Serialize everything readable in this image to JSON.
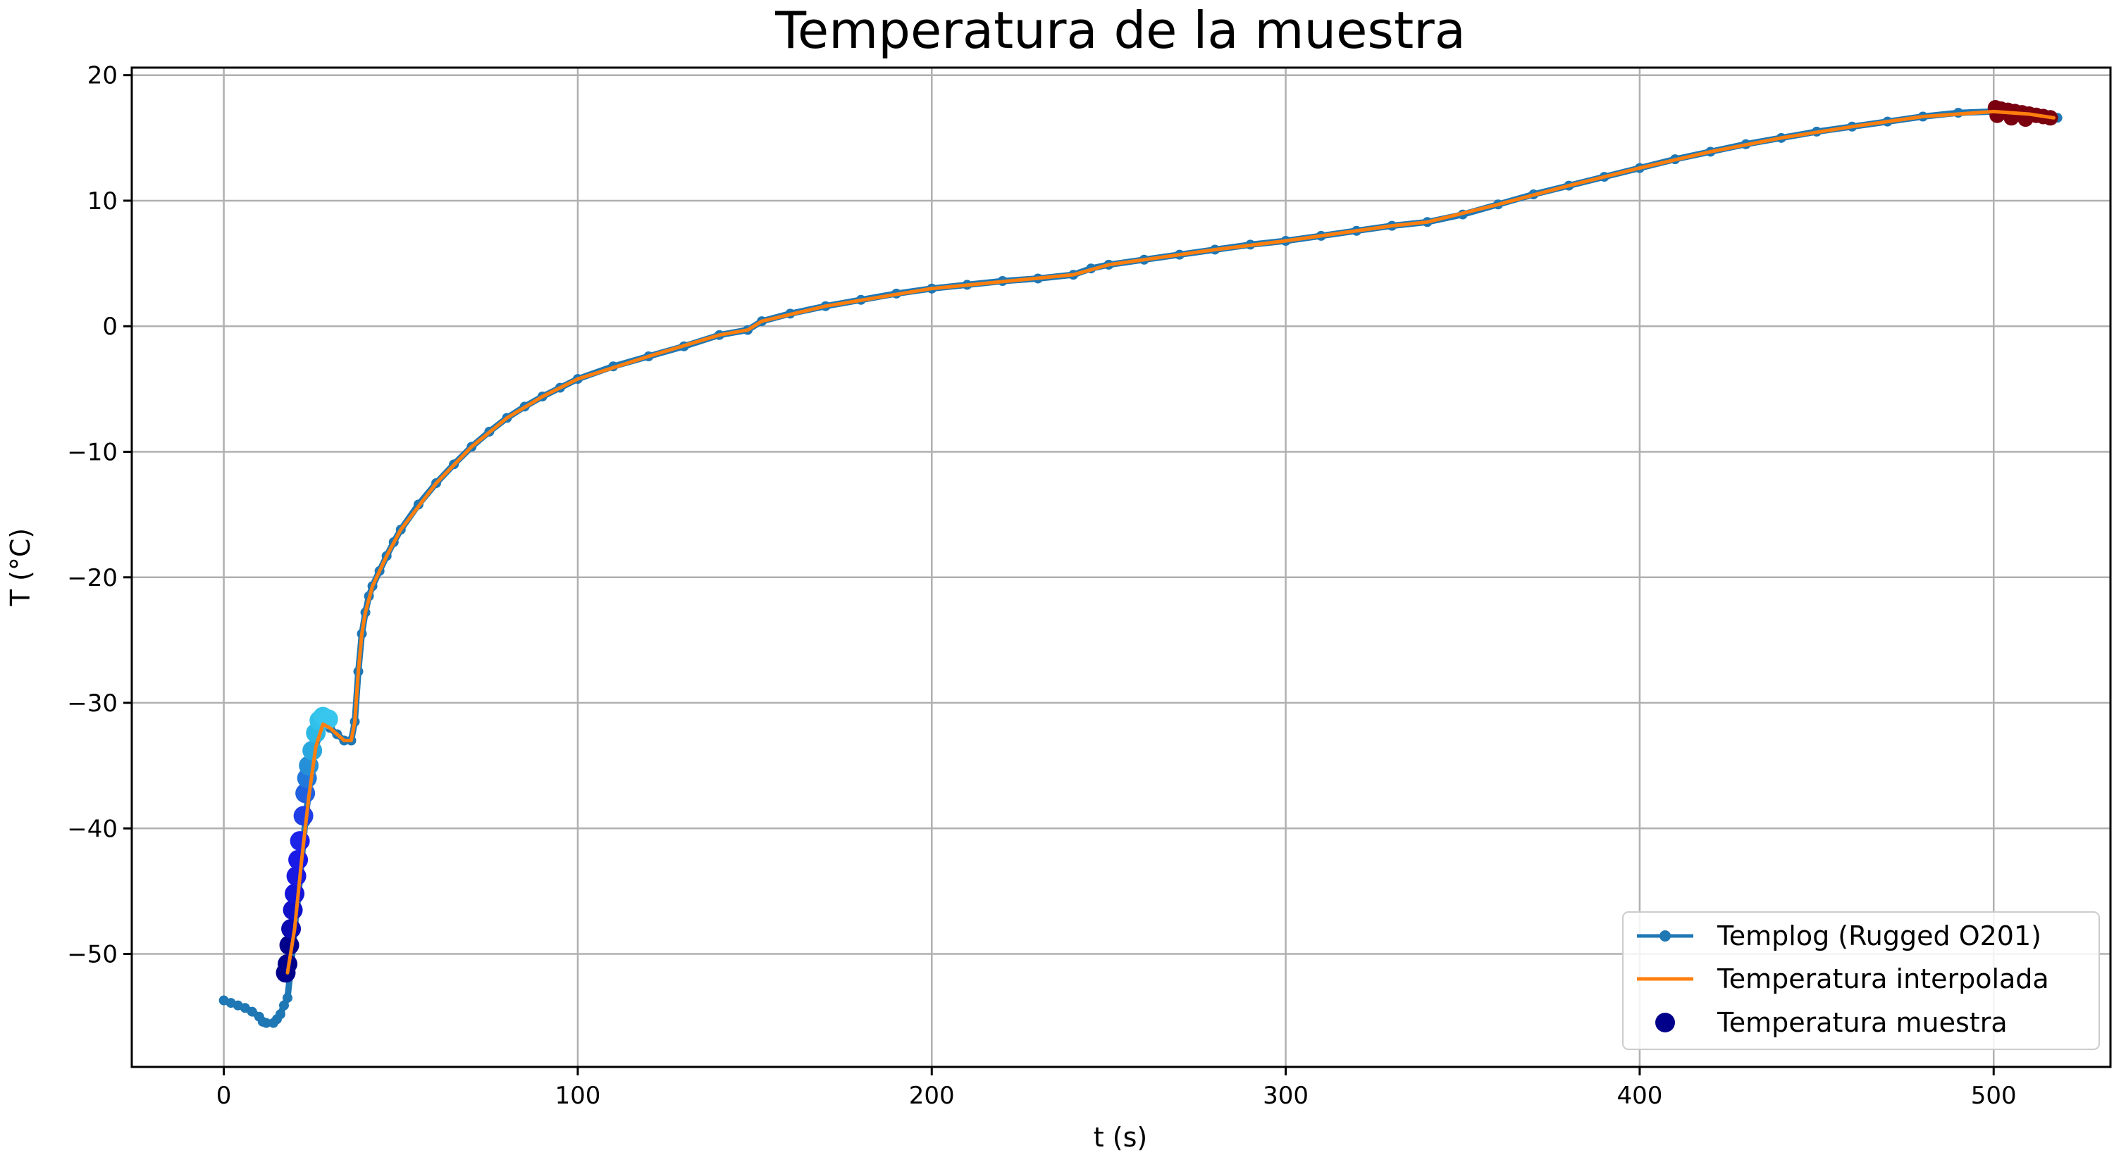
{
  "chart_data": {
    "type": "line",
    "title": "Temperatura de la muestra",
    "xlabel": "t (s)",
    "ylabel": "T (°C)",
    "xlim": [
      -26,
      533
    ],
    "ylim": [
      -59,
      20.6
    ],
    "xticks": [
      0,
      100,
      200,
      300,
      400,
      500
    ],
    "yticks": [
      20,
      10,
      0,
      -10,
      -20,
      -30,
      -40,
      -50
    ],
    "ytick_labels": [
      "20",
      "10",
      "0",
      "−10",
      "−20",
      "−30",
      "−40",
      "−50"
    ],
    "grid": true,
    "legend_position": "lower-right",
    "legend": [
      {
        "label": "Templog (Rugged O201)",
        "kind": "line-marker",
        "color": "#1f77b4"
      },
      {
        "label": "Temperatura interpolada",
        "kind": "line",
        "color": "#ff7f0e"
      },
      {
        "label": "Temperatura muestra",
        "kind": "scatter",
        "color": "#00008b"
      }
    ],
    "series": [
      {
        "name": "Templog (Rugged O201)",
        "color": "#1f77b4",
        "points": [
          [
            0,
            -53.7
          ],
          [
            2,
            -53.9
          ],
          [
            4,
            -54.1
          ],
          [
            6,
            -54.3
          ],
          [
            8,
            -54.6
          ],
          [
            10,
            -55.0
          ],
          [
            11,
            -55.4
          ],
          [
            12,
            -55.5
          ],
          [
            14,
            -55.5
          ],
          [
            15,
            -55.2
          ],
          [
            16,
            -54.8
          ],
          [
            17,
            -54.1
          ],
          [
            18,
            -53.5
          ],
          [
            19,
            -51.0
          ],
          [
            20,
            -48.0
          ],
          [
            21,
            -45.5
          ],
          [
            22,
            -42.5
          ],
          [
            23,
            -39.5
          ],
          [
            24,
            -37.0
          ],
          [
            25,
            -35.0
          ],
          [
            26,
            -33.0
          ],
          [
            27,
            -31.8
          ],
          [
            28,
            -31.5
          ],
          [
            29,
            -31.7
          ],
          [
            30,
            -32.0
          ],
          [
            32,
            -32.5
          ],
          [
            34,
            -33.0
          ],
          [
            36,
            -33.0
          ],
          [
            37,
            -31.5
          ],
          [
            38,
            -27.5
          ],
          [
            39,
            -24.5
          ],
          [
            40,
            -22.8
          ],
          [
            41,
            -21.5
          ],
          [
            42,
            -20.7
          ],
          [
            44,
            -19.5
          ],
          [
            46,
            -18.3
          ],
          [
            48,
            -17.2
          ],
          [
            50,
            -16.2
          ],
          [
            55,
            -14.2
          ],
          [
            60,
            -12.5
          ],
          [
            65,
            -11.0
          ],
          [
            70,
            -9.6
          ],
          [
            75,
            -8.4
          ],
          [
            80,
            -7.3
          ],
          [
            85,
            -6.4
          ],
          [
            90,
            -5.6
          ],
          [
            95,
            -4.9
          ],
          [
            100,
            -4.2
          ],
          [
            110,
            -3.2
          ],
          [
            120,
            -2.4
          ],
          [
            130,
            -1.6
          ],
          [
            140,
            -0.7
          ],
          [
            148,
            -0.3
          ],
          [
            152,
            0.4
          ],
          [
            160,
            1.0
          ],
          [
            170,
            1.6
          ],
          [
            180,
            2.1
          ],
          [
            190,
            2.6
          ],
          [
            200,
            3.0
          ],
          [
            210,
            3.3
          ],
          [
            220,
            3.6
          ],
          [
            230,
            3.8
          ],
          [
            240,
            4.1
          ],
          [
            245,
            4.6
          ],
          [
            250,
            4.9
          ],
          [
            260,
            5.3
          ],
          [
            270,
            5.7
          ],
          [
            280,
            6.1
          ],
          [
            290,
            6.5
          ],
          [
            300,
            6.8
          ],
          [
            310,
            7.2
          ],
          [
            320,
            7.6
          ],
          [
            330,
            8.0
          ],
          [
            340,
            8.3
          ],
          [
            350,
            8.9
          ],
          [
            360,
            9.7
          ],
          [
            370,
            10.5
          ],
          [
            380,
            11.2
          ],
          [
            390,
            11.9
          ],
          [
            400,
            12.6
          ],
          [
            410,
            13.3
          ],
          [
            420,
            13.9
          ],
          [
            430,
            14.5
          ],
          [
            440,
            15.0
          ],
          [
            450,
            15.5
          ],
          [
            460,
            15.9
          ],
          [
            470,
            16.3
          ],
          [
            480,
            16.7
          ],
          [
            490,
            17.0
          ],
          [
            500,
            17.1
          ],
          [
            505,
            17.0
          ],
          [
            510,
            16.9
          ],
          [
            515,
            16.8
          ],
          [
            518,
            16.6
          ]
        ]
      },
      {
        "name": "Temperatura interpolada",
        "color": "#ff7f0e",
        "points": [
          [
            18,
            -51.5
          ],
          [
            20,
            -48.0
          ],
          [
            22,
            -42.5
          ],
          [
            24,
            -37.5
          ],
          [
            26,
            -33.5
          ],
          [
            28,
            -31.7
          ],
          [
            30,
            -32.0
          ],
          [
            32,
            -32.5
          ],
          [
            34,
            -33.0
          ],
          [
            36,
            -33.0
          ],
          [
            37,
            -31.5
          ],
          [
            38,
            -27.5
          ],
          [
            39,
            -24.5
          ],
          [
            40,
            -22.8
          ],
          [
            42,
            -20.7
          ],
          [
            46,
            -18.3
          ],
          [
            50,
            -16.2
          ],
          [
            60,
            -12.5
          ],
          [
            70,
            -9.6
          ],
          [
            80,
            -7.3
          ],
          [
            90,
            -5.6
          ],
          [
            100,
            -4.2
          ],
          [
            120,
            -2.4
          ],
          [
            140,
            -0.7
          ],
          [
            148,
            -0.3
          ],
          [
            152,
            0.4
          ],
          [
            170,
            1.6
          ],
          [
            200,
            3.0
          ],
          [
            240,
            4.1
          ],
          [
            250,
            4.9
          ],
          [
            280,
            6.1
          ],
          [
            300,
            6.8
          ],
          [
            330,
            8.0
          ],
          [
            340,
            8.3
          ],
          [
            360,
            9.7
          ],
          [
            380,
            11.2
          ],
          [
            400,
            12.6
          ],
          [
            420,
            13.9
          ],
          [
            440,
            15.0
          ],
          [
            460,
            15.9
          ],
          [
            480,
            16.7
          ],
          [
            500,
            17.1
          ],
          [
            510,
            16.9
          ],
          [
            517,
            16.6
          ]
        ]
      },
      {
        "name": "Temperatura muestra",
        "type": "scatter",
        "points": [
          [
            17.5,
            -51.5,
            "#00008b"
          ],
          [
            18.0,
            -50.8,
            "#00008b"
          ],
          [
            18.5,
            -49.3,
            "#00008b"
          ],
          [
            19.0,
            -48.0,
            "#0a0ab0"
          ],
          [
            19.5,
            -46.5,
            "#0f10c8"
          ],
          [
            20.0,
            -45.2,
            "#1414d8"
          ],
          [
            20.5,
            -43.8,
            "#1818e0"
          ],
          [
            21.0,
            -42.5,
            "#1a1ae6"
          ],
          [
            21.5,
            -41.0,
            "#1c24e8"
          ],
          [
            22.5,
            -39.0,
            "#1f3ee6"
          ],
          [
            23.0,
            -37.2,
            "#2060e0"
          ],
          [
            23.5,
            -36.0,
            "#2278da"
          ],
          [
            24.0,
            -35.0,
            "#2590d8"
          ],
          [
            25.0,
            -33.8,
            "#28a8de"
          ],
          [
            26.0,
            -32.4,
            "#2cb8e4"
          ],
          [
            27.0,
            -31.4,
            "#30c0ea"
          ],
          [
            28.0,
            -31.1,
            "#34c4ec"
          ],
          [
            29.5,
            -31.3,
            "#38c6ee"
          ],
          [
            500.5,
            17.4,
            "#7a0010"
          ],
          [
            502,
            17.3,
            "#7a0010"
          ],
          [
            504,
            17.2,
            "#7a0010"
          ],
          [
            506,
            17.1,
            "#7a0010"
          ],
          [
            508,
            17.0,
            "#7a0010"
          ],
          [
            510,
            16.9,
            "#7a0010"
          ],
          [
            512,
            16.8,
            "#7a0010"
          ],
          [
            514,
            16.7,
            "#7a0010"
          ],
          [
            516,
            16.6,
            "#7a0010"
          ],
          [
            501,
            16.8,
            "#7a0010"
          ],
          [
            505,
            16.6,
            "#7a0010"
          ],
          [
            509,
            16.5,
            "#7a0010"
          ]
        ]
      }
    ]
  }
}
